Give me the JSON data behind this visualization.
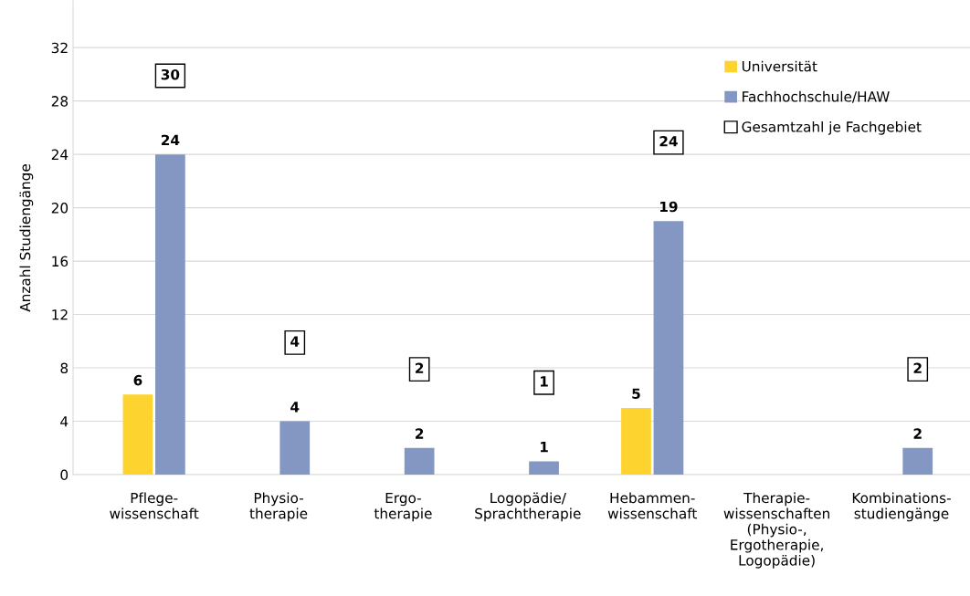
{
  "chart_data": {
    "type": "bar",
    "ylabel": "Anzahl Studiengänge",
    "categories": [
      "Pflege-\nwissenschaft",
      "Physio-\ntherapie",
      "Ergo-\ntherapie",
      "Logopädie/\nSprachtherapie",
      "Hebammen-\nwissenschaft",
      "Therapie-\nwissenschaften\n(Physio-,\nErgotherapie,\nLogopädie)",
      "Kombinations-\nstudiengänge"
    ],
    "series": [
      {
        "name": "Universität",
        "color": "#fdd42f",
        "values": [
          6,
          null,
          null,
          null,
          5,
          null,
          null
        ]
      },
      {
        "name": "Fachhochschule/HAW",
        "color": "#8497c2",
        "values": [
          24,
          4,
          2,
          1,
          19,
          null,
          2
        ]
      }
    ],
    "annotations": [
      "30",
      "4",
      "2",
      "1",
      "24",
      "2",
      "Gesamtzahl je Fachgebiet"
    ],
    "data_labels": true,
    "ylim": [
      0,
      35.5
    ],
    "yticks": [
      0,
      4,
      8,
      12,
      16,
      20,
      24,
      28,
      32
    ],
    "grid": "y",
    "legend": "top right"
  }
}
